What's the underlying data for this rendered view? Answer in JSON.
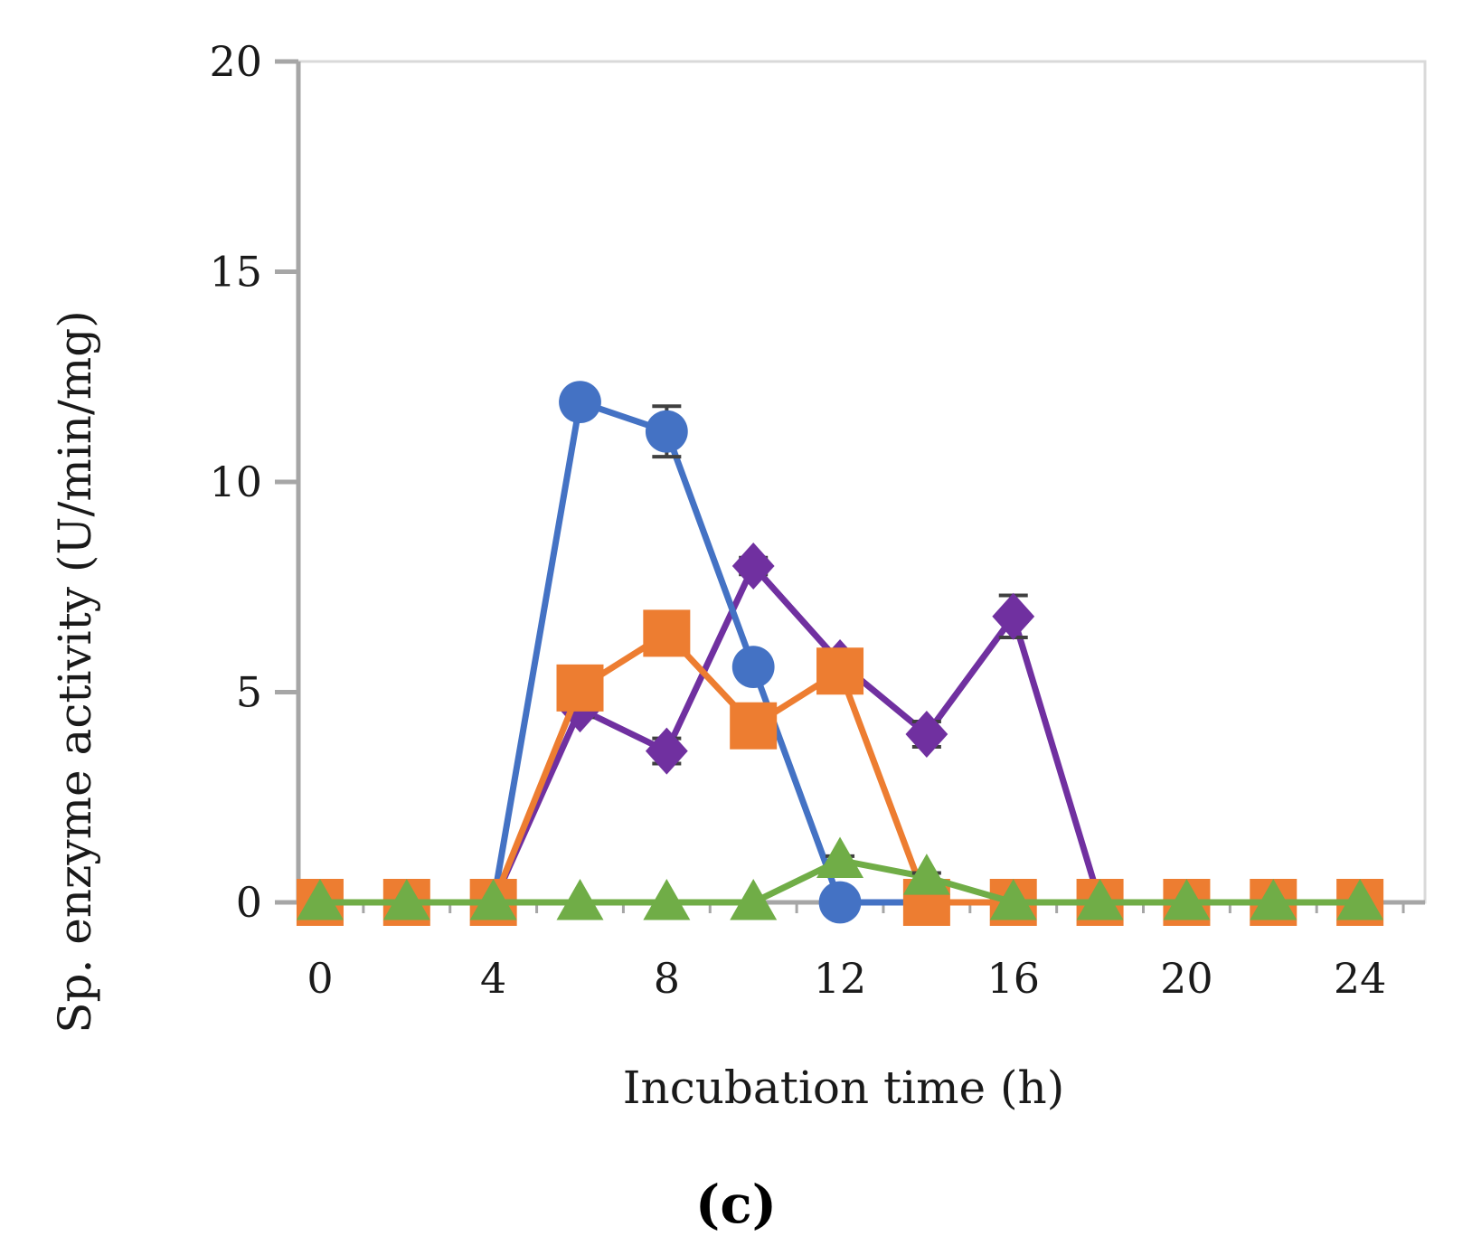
{
  "chart_data": {
    "type": "line",
    "title": "",
    "panel_label": "(c)",
    "xlabel": "Incubation time (h)",
    "ylabel": "Sp. enzyme activity (U/min/mg)",
    "xlim": [
      -0.5,
      25.5
    ],
    "ylim": [
      0,
      20
    ],
    "xticks": [
      0,
      4,
      8,
      12,
      16,
      20,
      24
    ],
    "yticks": [
      0,
      5,
      10,
      15,
      20
    ],
    "grid": false,
    "legend": "none",
    "x": [
      0,
      2,
      4,
      6,
      8,
      10,
      12,
      14,
      16,
      18,
      20,
      22,
      24
    ],
    "series": [
      {
        "name": "purple",
        "color": "#7030a0",
        "marker": "diamond",
        "values": [
          0,
          0,
          0,
          4.6,
          3.6,
          8.0,
          5.7,
          4.0,
          6.8,
          0,
          0,
          0,
          0
        ],
        "errors": [
          0,
          0,
          0,
          0.2,
          0.3,
          0.2,
          0.2,
          0.3,
          0.5,
          0,
          0,
          0,
          0
        ]
      },
      {
        "name": "blue",
        "color": "#4472c4",
        "marker": "circle",
        "values": [
          0,
          0,
          0,
          11.9,
          11.2,
          5.6,
          0,
          0,
          0,
          0,
          0,
          0,
          0
        ],
        "errors": [
          0,
          0,
          0,
          0.1,
          0.6,
          0.1,
          0,
          0,
          0,
          0,
          0,
          0,
          0
        ]
      },
      {
        "name": "orange",
        "color": "#ed7d31",
        "marker": "square",
        "values": [
          0,
          0,
          0,
          5.1,
          6.4,
          4.2,
          5.5,
          0,
          0,
          0,
          0,
          0,
          0
        ],
        "errors": [
          0,
          0,
          0,
          0.1,
          0.2,
          0.1,
          0.1,
          0,
          0,
          0,
          0,
          0,
          0
        ]
      },
      {
        "name": "green",
        "color": "#70ad47",
        "marker": "triangle",
        "values": [
          0,
          0,
          0,
          0,
          0,
          0,
          1.0,
          0.6,
          0,
          0,
          0,
          0,
          0
        ],
        "errors": [
          0,
          0,
          0,
          0,
          0,
          0,
          0.1,
          0.1,
          0,
          0,
          0,
          0,
          0
        ]
      }
    ]
  }
}
